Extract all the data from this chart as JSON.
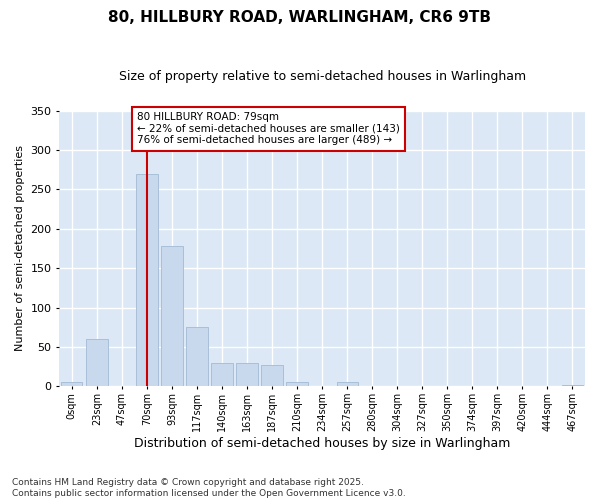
{
  "title": "80, HILLBURY ROAD, WARLINGHAM, CR6 9TB",
  "subtitle": "Size of property relative to semi-detached houses in Warlingham",
  "xlabel": "Distribution of semi-detached houses by size in Warlingham",
  "ylabel": "Number of semi-detached properties",
  "bar_color": "#c8d9ee",
  "bar_edge_color": "#a8bfd8",
  "fig_background_color": "#ffffff",
  "plot_background_color": "#dce8f5",
  "grid_color": "#ffffff",
  "categories": [
    "0sqm",
    "23sqm",
    "47sqm",
    "70sqm",
    "93sqm",
    "117sqm",
    "140sqm",
    "163sqm",
    "187sqm",
    "210sqm",
    "234sqm",
    "257sqm",
    "280sqm",
    "304sqm",
    "327sqm",
    "350sqm",
    "374sqm",
    "397sqm",
    "420sqm",
    "444sqm",
    "467sqm"
  ],
  "values": [
    5,
    60,
    1,
    270,
    178,
    75,
    30,
    30,
    27,
    6,
    1,
    6,
    0,
    0,
    0,
    0,
    0,
    0,
    0,
    0,
    2
  ],
  "property_bin_index": 3,
  "vline_color": "#cc0000",
  "annotation_line1": "80 HILLBURY ROAD: 79sqm",
  "annotation_line2": "← 22% of semi-detached houses are smaller (143)",
  "annotation_line3": "76% of semi-detached houses are larger (489) →",
  "annotation_border_color": "#cc0000",
  "annotation_bg_color": "#ffffff",
  "footer_text": "Contains HM Land Registry data © Crown copyright and database right 2025.\nContains public sector information licensed under the Open Government Licence v3.0.",
  "ylim": [
    0,
    350
  ],
  "yticks": [
    0,
    50,
    100,
    150,
    200,
    250,
    300,
    350
  ],
  "title_fontsize": 11,
  "subtitle_fontsize": 9,
  "annotation_fontsize": 7.5,
  "tick_fontsize": 7,
  "ylabel_fontsize": 8,
  "xlabel_fontsize": 9,
  "footer_fontsize": 6.5
}
